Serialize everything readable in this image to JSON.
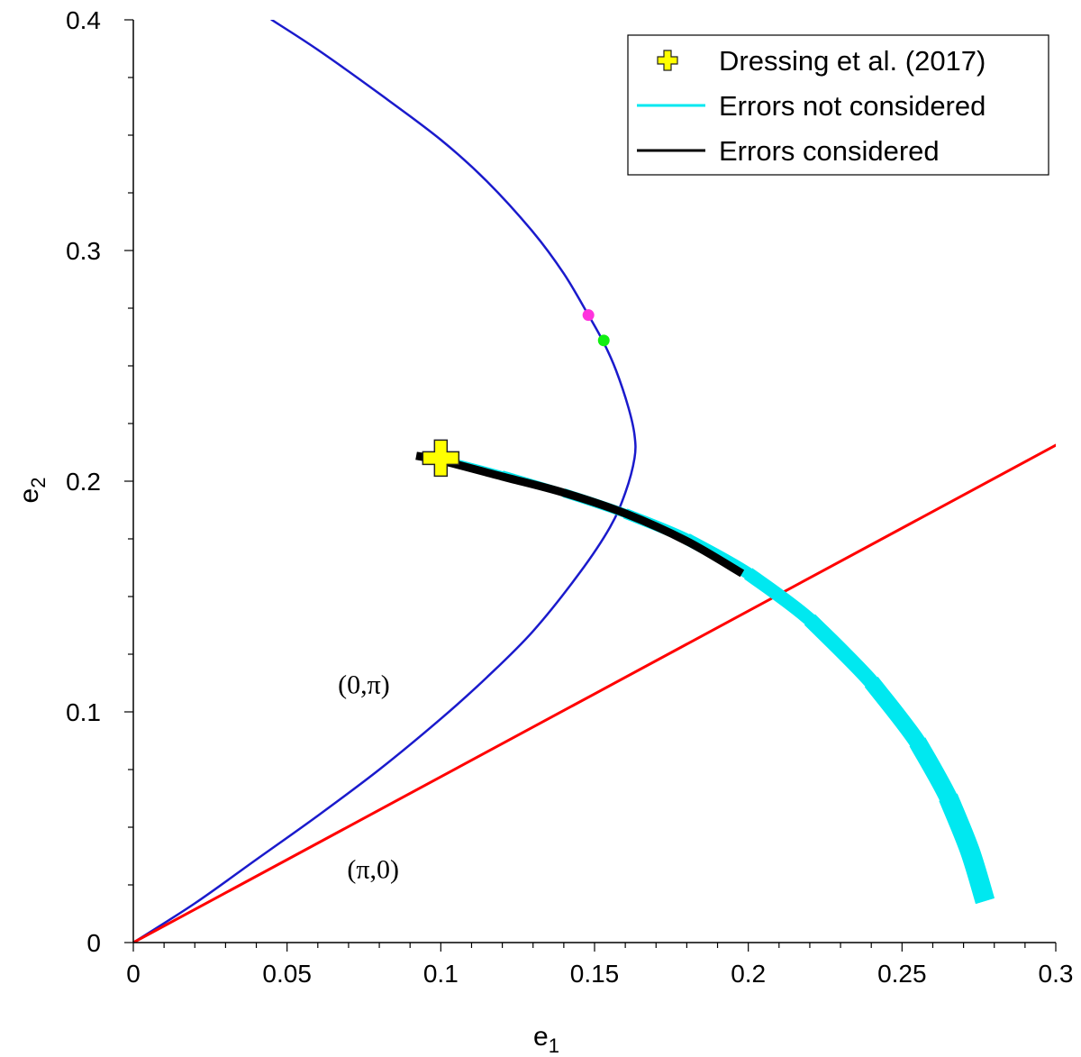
{
  "chart_data": {
    "type": "line",
    "xlabel": {
      "base": "e",
      "sub": "1"
    },
    "ylabel": {
      "base": "e",
      "sub": "2"
    },
    "xlim": [
      0,
      0.3
    ],
    "ylim": [
      0,
      0.4
    ],
    "xticks": [
      0,
      0.05,
      0.1,
      0.15,
      0.2,
      0.25,
      0.3
    ],
    "xtick_labels": [
      "0",
      "0.05",
      "0.1",
      "0.15",
      "0.2",
      "0.25",
      "0.3"
    ],
    "yticks": [
      0,
      0.1,
      0.2,
      0.3,
      0.4
    ],
    "ytick_labels": [
      "0",
      "0.1",
      "0.2",
      "0.3",
      "0.4"
    ],
    "legend_position": "top-right",
    "legend": [
      {
        "label": "Dressing et al. (2017)",
        "kind": "plus-marker",
        "color": "#ffff00"
      },
      {
        "label": "Errors not considered",
        "kind": "line",
        "color": "#00e8f0"
      },
      {
        "label": "Errors considered",
        "kind": "line",
        "color": "#000000"
      }
    ],
    "annotations": [
      {
        "text": "(0,π)",
        "x": 0.075,
        "y": 0.108
      },
      {
        "text": "(π,0)",
        "x": 0.078,
        "y": 0.028
      }
    ],
    "series": [
      {
        "name": "boundary curve",
        "color": "#1a1acc",
        "x": [
          0,
          0.02,
          0.04,
          0.06,
          0.08,
          0.1,
          0.115,
          0.13,
          0.145,
          0.155,
          0.16,
          0.163,
          0.163,
          0.161,
          0.157,
          0.153,
          0.148,
          0.14,
          0.13,
          0.115,
          0.1,
          0.08,
          0.06,
          0.045
        ],
        "y": [
          0,
          0.017,
          0.036,
          0.055,
          0.075,
          0.097,
          0.115,
          0.135,
          0.16,
          0.18,
          0.195,
          0.21,
          0.22,
          0.232,
          0.248,
          0.26,
          0.272,
          0.29,
          0.308,
          0.33,
          0.348,
          0.368,
          0.387,
          0.4
        ]
      },
      {
        "name": "diagonal line",
        "color": "#ff0000",
        "x": [
          0,
          0.3
        ],
        "y": [
          0,
          0.2156
        ]
      },
      {
        "name": "Errors not considered",
        "color": "#00e8f0",
        "x": [
          0.1,
          0.12,
          0.14,
          0.16,
          0.18,
          0.2,
          0.22,
          0.24,
          0.255,
          0.265,
          0.272,
          0.277
        ],
        "y": [
          0.21,
          0.203,
          0.195,
          0.186,
          0.175,
          0.16,
          0.14,
          0.113,
          0.087,
          0.063,
          0.04,
          0.018
        ]
      },
      {
        "name": "Errors considered",
        "color": "#000000",
        "x": [
          0.092,
          0.1,
          0.12,
          0.14,
          0.16,
          0.18,
          0.198
        ],
        "y": [
          0.211,
          0.209,
          0.202,
          0.195,
          0.186,
          0.174,
          0.16
        ]
      }
    ],
    "points": [
      {
        "name": "magenta point",
        "x": 0.148,
        "y": 0.272,
        "color": "#ff33dd"
      },
      {
        "name": "green point",
        "x": 0.153,
        "y": 0.261,
        "color": "#11ee11"
      },
      {
        "name": "Dressing et al. (2017)",
        "x": 0.1,
        "y": 0.21,
        "color": "#ffff00",
        "marker": "plus"
      }
    ]
  }
}
